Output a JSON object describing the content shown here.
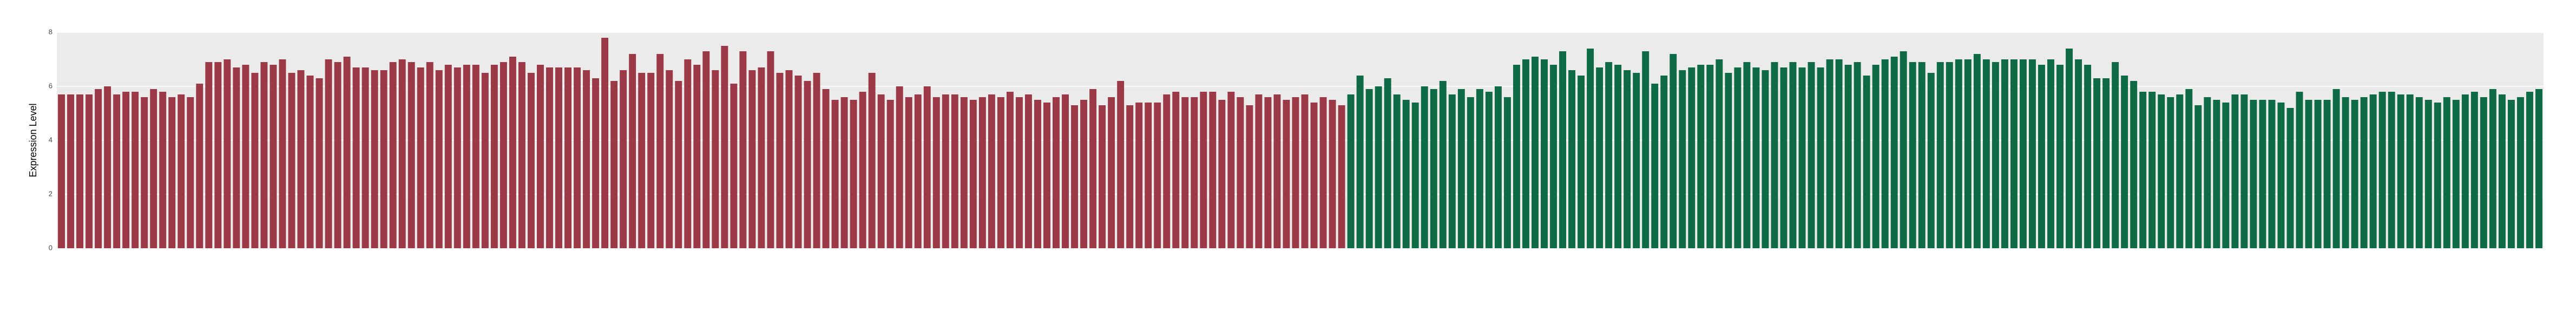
{
  "chart_data": {
    "type": "bar",
    "ylabel": "Expression Level",
    "ylim": [
      0,
      8
    ],
    "yticks": [
      0,
      2,
      4,
      6,
      8
    ],
    "grid": true,
    "series": [
      {
        "color": "#9b3a46",
        "values": [
          5.7,
          5.7,
          5.7,
          5.7,
          5.9,
          6.0,
          5.7,
          5.8,
          5.8,
          5.6,
          5.9,
          5.8,
          5.6,
          5.7,
          5.6,
          6.1,
          6.9,
          6.9,
          7.0,
          6.7,
          6.8,
          6.5,
          6.9,
          6.8,
          7.0,
          6.5,
          6.6,
          6.4,
          6.3,
          7.0,
          6.9,
          7.1,
          6.7,
          6.7,
          6.6,
          6.6,
          6.9,
          7.0,
          6.9,
          6.7,
          6.9,
          6.6,
          6.8,
          6.7,
          6.8,
          6.8,
          6.5,
          6.8,
          6.9,
          7.1,
          6.9,
          6.5,
          6.8,
          6.7,
          6.7,
          6.7,
          6.7,
          6.6,
          6.3,
          7.8,
          6.2,
          6.6,
          7.2,
          6.5,
          6.5,
          7.2,
          6.6,
          6.2,
          7.0,
          6.8,
          7.3,
          6.6,
          7.5,
          6.1,
          7.3,
          6.6,
          6.7,
          7.3,
          6.5,
          6.6,
          6.4,
          6.2,
          6.5,
          5.9,
          5.5,
          5.6,
          5.5,
          5.8,
          6.5,
          5.7,
          5.5,
          6.0,
          5.6,
          5.7,
          6.0,
          5.6,
          5.7,
          5.7,
          5.6,
          5.5,
          5.6,
          5.7,
          5.6,
          5.8,
          5.6,
          5.7,
          5.5,
          5.4,
          5.6,
          5.7,
          5.3,
          5.5,
          5.9,
          5.3,
          5.6,
          6.2,
          5.3,
          5.4,
          5.4,
          5.4,
          5.7,
          5.8,
          5.6,
          5.6,
          5.8,
          5.8,
          5.5,
          5.8,
          5.6,
          5.3,
          5.7,
          5.6,
          5.7,
          5.5,
          5.6,
          5.7,
          5.4,
          5.6,
          5.5,
          5.3,
          null,
          null,
          null,
          null,
          null,
          null,
          null,
          null,
          null,
          null,
          null,
          null,
          null,
          null,
          null,
          null,
          null,
          null,
          null,
          null,
          null,
          null,
          null,
          null,
          null,
          null,
          null,
          null,
          null,
          null,
          null,
          null,
          null,
          null,
          null,
          null,
          null,
          null,
          null,
          null,
          null,
          null,
          null,
          null,
          null,
          null,
          null,
          null,
          null,
          null,
          null,
          null,
          null,
          null,
          null,
          null,
          null,
          null,
          null,
          null,
          null,
          null,
          null,
          null,
          null,
          null,
          null,
          null,
          null,
          null,
          null,
          null,
          null,
          null,
          null,
          null,
          null,
          null,
          null,
          null,
          null,
          null,
          null,
          null,
          null,
          null,
          null,
          null,
          null,
          null,
          null,
          null,
          null,
          null,
          null,
          null,
          null,
          null,
          null,
          null,
          null,
          null,
          null,
          null,
          null,
          null,
          null,
          null,
          null,
          null,
          null,
          null,
          null,
          null,
          null,
          null,
          null,
          null,
          null,
          null,
          null,
          null,
          null,
          null,
          null,
          null,
          null,
          null,
          null,
          null
        ]
      },
      {
        "color": "#0f6b45",
        "values": [
          null,
          null,
          null,
          null,
          null,
          null,
          null,
          null,
          null,
          null,
          null,
          null,
          null,
          null,
          null,
          null,
          null,
          null,
          null,
          null,
          null,
          null,
          null,
          null,
          null,
          null,
          null,
          null,
          null,
          null,
          null,
          null,
          null,
          null,
          null,
          null,
          null,
          null,
          null,
          null,
          null,
          null,
          null,
          null,
          null,
          null,
          null,
          null,
          null,
          null,
          null,
          null,
          null,
          null,
          null,
          null,
          null,
          null,
          null,
          null,
          null,
          null,
          null,
          null,
          null,
          null,
          null,
          null,
          null,
          null,
          null,
          null,
          null,
          null,
          null,
          null,
          null,
          null,
          null,
          null,
          null,
          null,
          null,
          null,
          null,
          null,
          null,
          null,
          null,
          null,
          null,
          null,
          null,
          null,
          null,
          null,
          null,
          null,
          null,
          null,
          null,
          null,
          null,
          null,
          null,
          null,
          null,
          null,
          null,
          null,
          null,
          null,
          null,
          null,
          null,
          null,
          null,
          null,
          null,
          null,
          null,
          null,
          null,
          null,
          null,
          null,
          null,
          null,
          null,
          null,
          null,
          null,
          null,
          null,
          null,
          null,
          null,
          null,
          null,
          null,
          5.7,
          6.4,
          5.9,
          6.0,
          6.3,
          5.7,
          5.5,
          5.4,
          6.0,
          5.9,
          6.2,
          5.7,
          5.9,
          5.6,
          5.9,
          5.8,
          6.0,
          5.6,
          6.8,
          7.0,
          7.1,
          7.0,
          6.8,
          7.3,
          6.6,
          6.4,
          7.4,
          6.7,
          6.9,
          6.8,
          6.6,
          6.5,
          7.3,
          6.1,
          6.4,
          7.2,
          6.6,
          6.7,
          6.8,
          6.8,
          7.0,
          6.5,
          6.7,
          6.9,
          6.7,
          6.6,
          6.9,
          6.7,
          6.9,
          6.7,
          6.9,
          6.7,
          7.0,
          7.0,
          6.8,
          6.9,
          6.4,
          6.8,
          7.0,
          7.1,
          7.3,
          6.9,
          6.9,
          6.5,
          6.9,
          6.9,
          7.0,
          7.0,
          7.2,
          7.0,
          6.9,
          7.0,
          7.0,
          7.0,
          7.0,
          6.8,
          7.0,
          6.8,
          7.4,
          7.0,
          6.8,
          6.3,
          6.3,
          6.9,
          6.4,
          6.2,
          5.8,
          5.8,
          5.7,
          5.6,
          5.7,
          5.9,
          5.3,
          5.6,
          5.5,
          5.4,
          5.7,
          5.7,
          5.5,
          5.5,
          5.5,
          5.4,
          5.2,
          5.8,
          5.5,
          5.5,
          5.5,
          5.9,
          5.6,
          5.5,
          5.6,
          5.7,
          5.8,
          5.8,
          5.7,
          5.7,
          5.6,
          5.5,
          5.4,
          5.6,
          5.5,
          5.7,
          5.8,
          5.6,
          5.9,
          5.7,
          5.5,
          5.6,
          5.8,
          5.9
        ]
      }
    ]
  }
}
